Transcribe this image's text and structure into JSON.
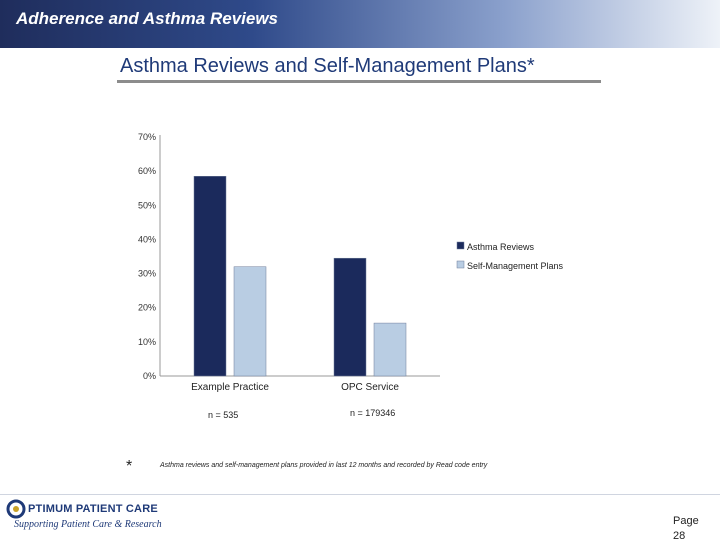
{
  "header": {
    "title": "Adherence and Asthma Reviews"
  },
  "slide": {
    "title": "Asthma Reviews and Self-Management Plans*"
  },
  "chart_data": {
    "type": "bar",
    "categories": [
      "Example Practice",
      "OPC Service"
    ],
    "series": [
      {
        "name": "Asthma Reviews",
        "values": [
          58.5,
          34.5
        ],
        "color": "#1b2a5c"
      },
      {
        "name": "Self-Management Plans",
        "values": [
          32,
          15.5
        ],
        "color": "#b9cde3"
      }
    ],
    "y_ticks": [
      "0%",
      "10%",
      "20%",
      "30%",
      "40%",
      "50%",
      "60%",
      "70%"
    ],
    "ylim": [
      0,
      70
    ],
    "legend_position": "right",
    "grid": false,
    "n_labels": [
      "n = 535",
      "n = 179346"
    ]
  },
  "footnote": {
    "marker": "*",
    "text": "Asthma reviews and self-management plans provided in last 12 months and recorded by Read code entry"
  },
  "logo": {
    "name": "PTIMUM PATIENT CARE",
    "tagline": "Supporting Patient Care & Research",
    "initial": "O"
  },
  "page": {
    "label": "Page",
    "number": "28"
  }
}
